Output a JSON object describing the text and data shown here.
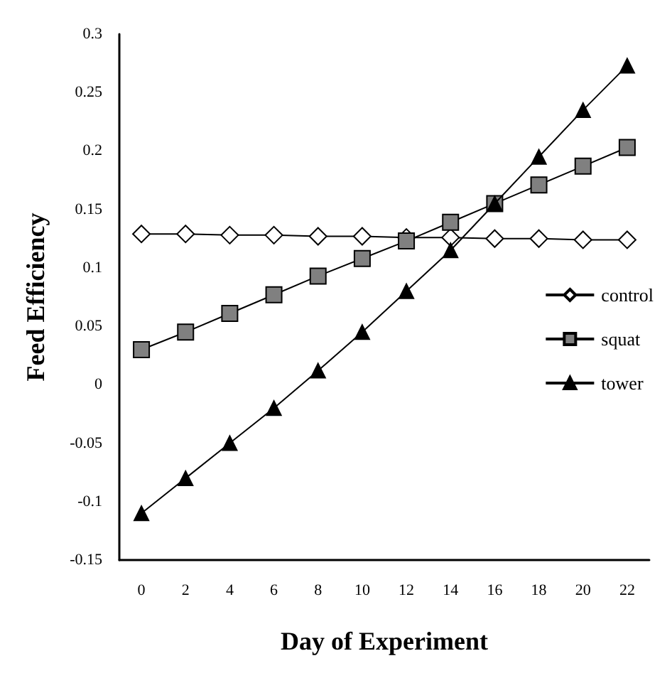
{
  "chart_data": {
    "type": "line",
    "xlabel": "Day of Experiment",
    "ylabel": "Feed Efficiency",
    "categories": [
      "0",
      "2",
      "4",
      "6",
      "8",
      "10",
      "12",
      "14",
      "16",
      "18",
      "20",
      "22"
    ],
    "series": [
      {
        "name": "control",
        "color": "#ffffff",
        "marker": "diamond",
        "values": [
          0.129,
          0.129,
          0.128,
          0.128,
          0.127,
          0.127,
          0.126,
          0.126,
          0.125,
          0.125,
          0.124,
          0.124
        ]
      },
      {
        "name": "squat",
        "color": "#808080",
        "marker": "square",
        "values": [
          0.03,
          0.045,
          0.061,
          0.077,
          0.093,
          0.108,
          0.123,
          0.139,
          0.155,
          0.171,
          0.187,
          0.203
        ]
      },
      {
        "name": "tower",
        "color": "#000000",
        "marker": "triangle",
        "values": [
          -0.11,
          -0.08,
          -0.05,
          -0.02,
          0.012,
          0.045,
          0.08,
          0.115,
          0.155,
          0.195,
          0.235,
          0.273
        ]
      }
    ],
    "ylim": [
      -0.15,
      0.3
    ],
    "yticks": [
      -0.15,
      -0.1,
      -0.05,
      0,
      0.05,
      0.1,
      0.15,
      0.2,
      0.25,
      0.3
    ],
    "grid": false,
    "legend": "right"
  }
}
